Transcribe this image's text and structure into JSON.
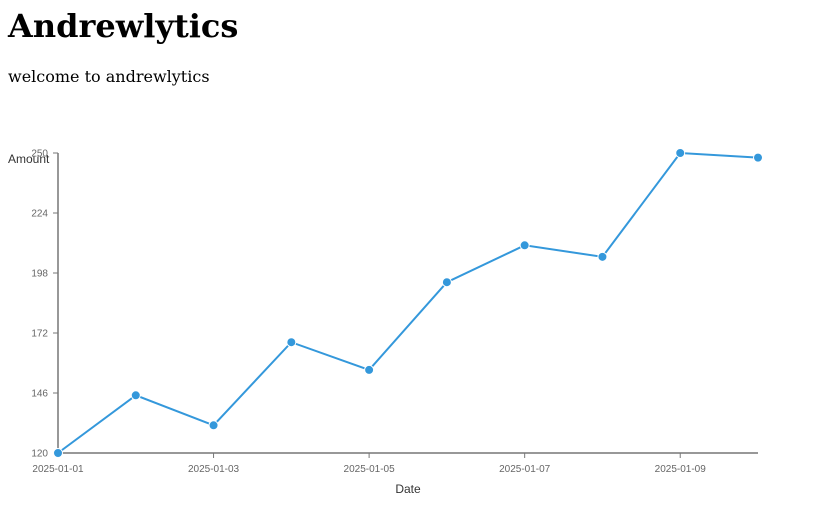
{
  "page": {
    "title": "Andrewlytics",
    "subtitle": "welcome to andrewlytics"
  },
  "colors": {
    "line": "#3498db",
    "axis": "#777777",
    "tick_text": "#666666",
    "axis_title": "#333333"
  },
  "chart_data": {
    "type": "line",
    "x": [
      "2025-01-01",
      "2025-01-02",
      "2025-01-03",
      "2025-01-04",
      "2025-01-05",
      "2025-01-06",
      "2025-01-07",
      "2025-01-08",
      "2025-01-09",
      "2025-01-10"
    ],
    "series": [
      {
        "values": [
          120,
          145,
          132,
          168,
          156,
          194,
          210,
          205,
          250,
          248
        ]
      }
    ],
    "xlabel": "Date",
    "ylabel": "Amount",
    "ylim": [
      120,
      250
    ],
    "yticks": [
      "120",
      "146",
      "172",
      "198",
      "224",
      "250"
    ],
    "xticks": [
      "2025-01-01",
      "2025-01-03",
      "2025-01-05",
      "2025-01-07",
      "2025-01-09"
    ],
    "grid": false,
    "markers": true
  }
}
